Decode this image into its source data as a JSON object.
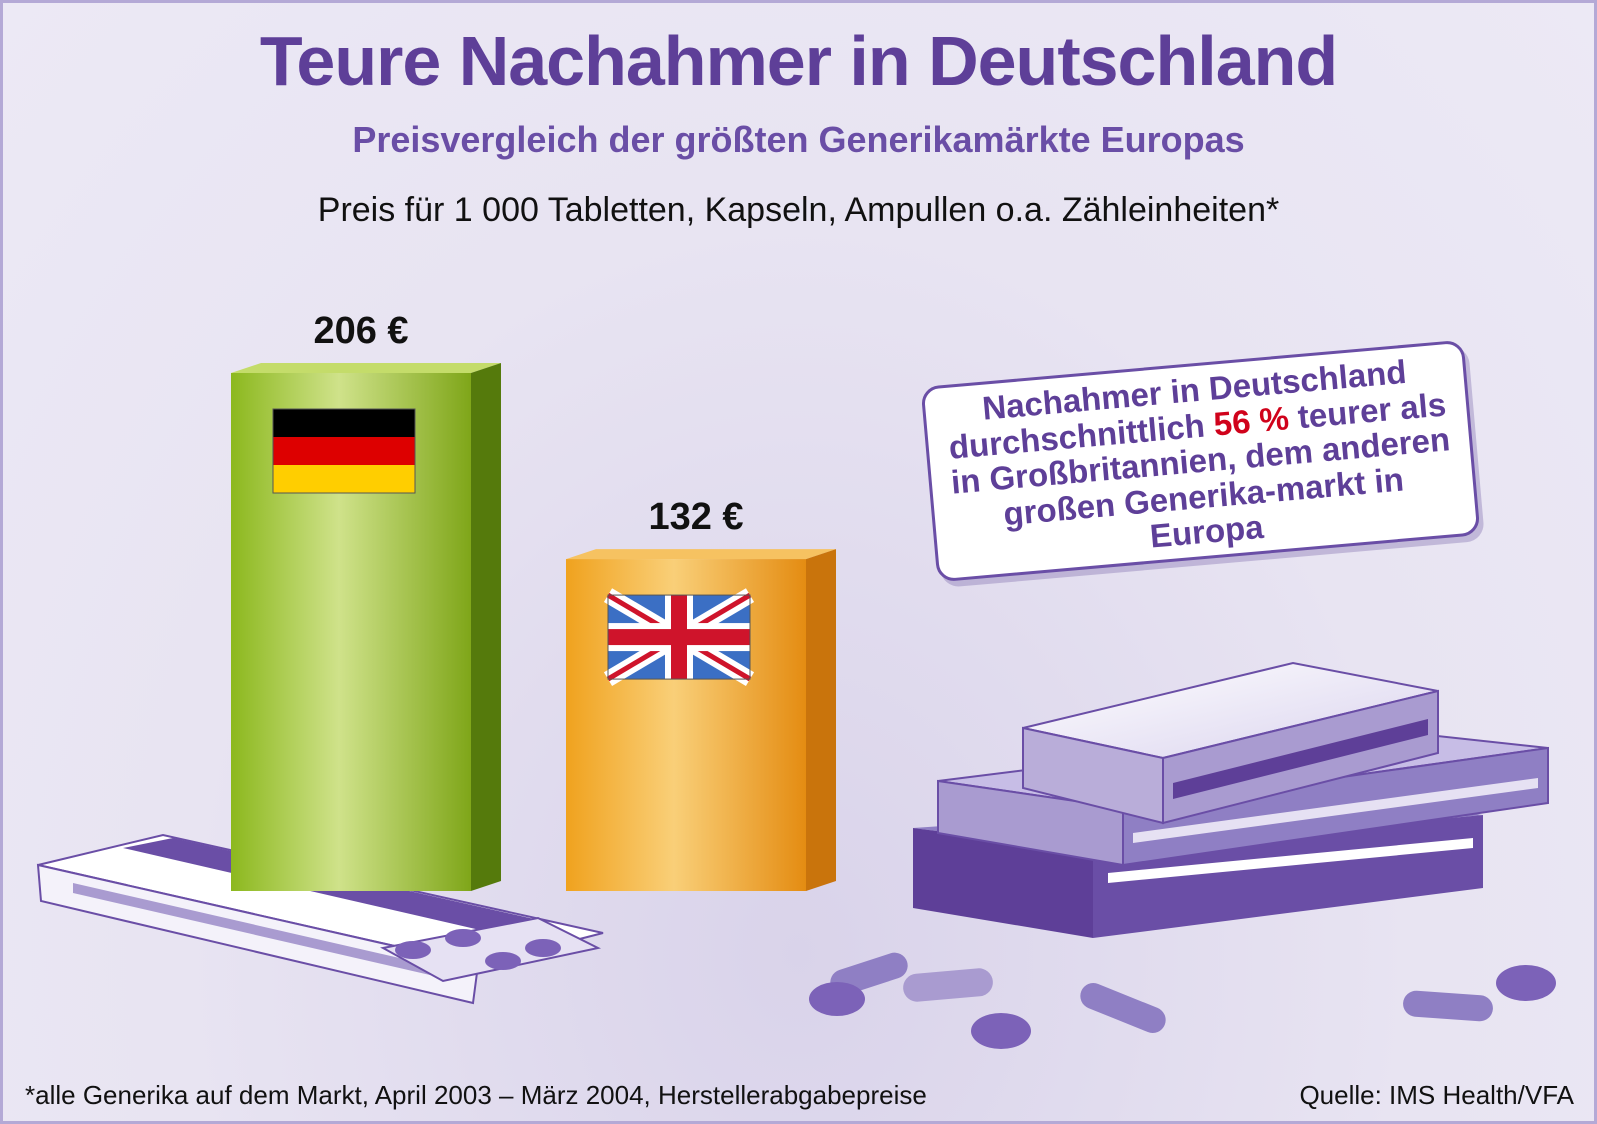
{
  "title": "Teure Nachahmer in Deutschland",
  "subtitle": "Preisvergleich der größten Generikamärkte Europas",
  "unit_note": "Preis für 1 000 Tabletten, Kapseln, Ampullen o.a. Zähleinheiten*",
  "callout": {
    "before": "Nachahmer in Deutschland durchschnittlich ",
    "highlight": "56 %",
    "after": " teurer als in Großbritannien, dem anderen großen Generika-markt in Europa"
  },
  "footnote": "*alle Generika auf dem Markt, April 2003 – März 2004, Herstellerabgabepreise",
  "source": "Quelle: IMS Health/VFA",
  "colors": {
    "title": "#5e3f98",
    "germany_bar": "#8bb81c",
    "uk_bar": "#f0a21e",
    "highlight": "#d0021b"
  },
  "chart_data": {
    "type": "bar",
    "categories": [
      "Deutschland",
      "Großbritannien"
    ],
    "values": [
      206,
      132
    ],
    "value_labels": [
      "206 €",
      "132 €"
    ],
    "bar_icons": [
      "germany-flag-icon",
      "uk-flag-icon"
    ],
    "unit": "€",
    "ylim": [
      0,
      206
    ],
    "grid": false
  }
}
